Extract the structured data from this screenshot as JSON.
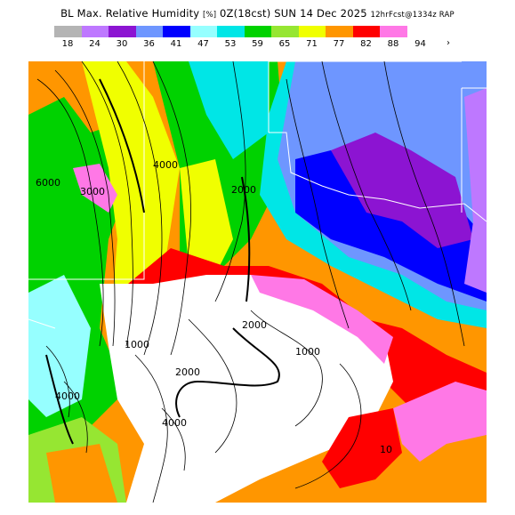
{
  "title": {
    "main": "BL Max. Relative Humidity",
    "units": "[%]",
    "time": "0Z(18cst) SUN 14 Dec 2025",
    "run": "12hrFcst@1334z RAP"
  },
  "legend": {
    "colors": [
      "#b4b4b4",
      "#be78ff",
      "#8c14d2",
      "#6e96ff",
      "#0000ff",
      "#96ffff",
      "#00e6e6",
      "#00d200",
      "#96e632",
      "#f0ff00",
      "#ff9600",
      "#ff0000",
      "#ff78e6",
      "#ffffff"
    ],
    "labels": [
      "18",
      "24",
      "30",
      "36",
      "41",
      "47",
      "53",
      "59",
      "65",
      "71",
      "77",
      "82",
      "88",
      "94"
    ],
    "more_arrow": "›"
  },
  "map": {
    "contour_labels": [
      "1000",
      "2000",
      "2000",
      "2000",
      "3000",
      "4000",
      "4000",
      "4000",
      "6000",
      "1000",
      "10"
    ]
  }
}
